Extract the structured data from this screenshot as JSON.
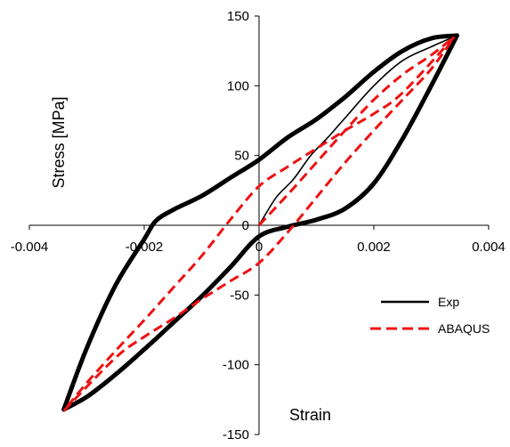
{
  "chart_data": {
    "type": "line",
    "title": "",
    "xlabel": "Strain",
    "ylabel": "Stress [MPa]",
    "xlim": [
      -0.004,
      0.004
    ],
    "ylim": [
      -150,
      150
    ],
    "x_ticks": [
      -0.004,
      -0.002,
      0,
      0.002,
      0.004
    ],
    "x_tick_labels": [
      "-0.004",
      "-0.002",
      "0",
      "0.002",
      "0.004"
    ],
    "y_ticks": [
      -150,
      -100,
      -50,
      0,
      50,
      100,
      150
    ],
    "y_tick_labels": [
      "-150",
      "-100",
      "-50",
      "0",
      "50",
      "100",
      "150"
    ],
    "grid": false,
    "legend_position": "right",
    "series": [
      {
        "name": "Exp",
        "color": "#000000",
        "style": "solid",
        "segments": [
          {
            "weight": "thick",
            "x": [
              0.00345,
              0.003,
              0.0025,
              0.002,
              0.0015,
              0.001,
              0.0005,
              0.0,
              -0.0005,
              -0.001,
              -0.0015,
              -0.0018,
              -0.002,
              -0.0025,
              -0.003,
              -0.0034
            ],
            "y": [
              136,
              134,
              125,
              110,
              92,
              76,
              63,
              47,
              34,
              21,
              11,
              3,
              -10,
              -43,
              -88,
              -132
            ]
          },
          {
            "weight": "thick",
            "x": [
              -0.0034,
              -0.003,
              -0.0025,
              -0.002,
              -0.0015,
              -0.001,
              -0.0005,
              0.0,
              0.0005,
              0.001,
              0.0015,
              0.002,
              0.0025,
              0.003,
              0.00345
            ],
            "y": [
              -132,
              -123,
              -107,
              -89,
              -70,
              -51,
              -30,
              -8,
              -1,
              4,
              12,
              30,
              62,
              100,
              136
            ]
          },
          {
            "weight": "thin",
            "x": [
              0.0,
              0.0003,
              0.0006,
              0.0009,
              0.0012,
              0.0015,
              0.002,
              0.0025,
              0.003,
              0.00345
            ],
            "y": [
              0,
              20,
              33,
              50,
              63,
              77,
              100,
              118,
              128,
              136
            ]
          }
        ]
      },
      {
        "name": "ABAQUS",
        "color": "#ee1111",
        "style": "dashed",
        "segments": [
          {
            "weight": "normal",
            "x": [
              0.0,
              0.0005,
              0.001,
              0.0015,
              0.002,
              0.0025,
              0.003,
              0.0034
            ],
            "y": [
              0,
              22,
              45,
              68,
              90,
              108,
              122,
              135
            ]
          },
          {
            "weight": "normal",
            "x": [
              0.0034,
              0.0025,
              0.002,
              0.0015,
              0.001,
              0.0005,
              0.0,
              -0.0005,
              -0.001,
              -0.0015,
              -0.002,
              -0.0025,
              -0.003,
              -0.0034
            ],
            "y": [
              135,
              95,
              80,
              68,
              55,
              42,
              28,
              4,
              -22,
              -45,
              -68,
              -90,
              -113,
              -133
            ]
          },
          {
            "weight": "normal",
            "x": [
              -0.0034,
              -0.0025,
              -0.002,
              -0.0015,
              -0.001,
              -0.0005,
              0.0,
              0.0005,
              0.001,
              0.0015,
              0.002,
              0.0025,
              0.003,
              0.0034
            ],
            "y": [
              -133,
              -95,
              -80,
              -67,
              -53,
              -40,
              -27,
              -5,
              20,
              45,
              68,
              90,
              112,
              135
            ]
          }
        ]
      }
    ]
  }
}
